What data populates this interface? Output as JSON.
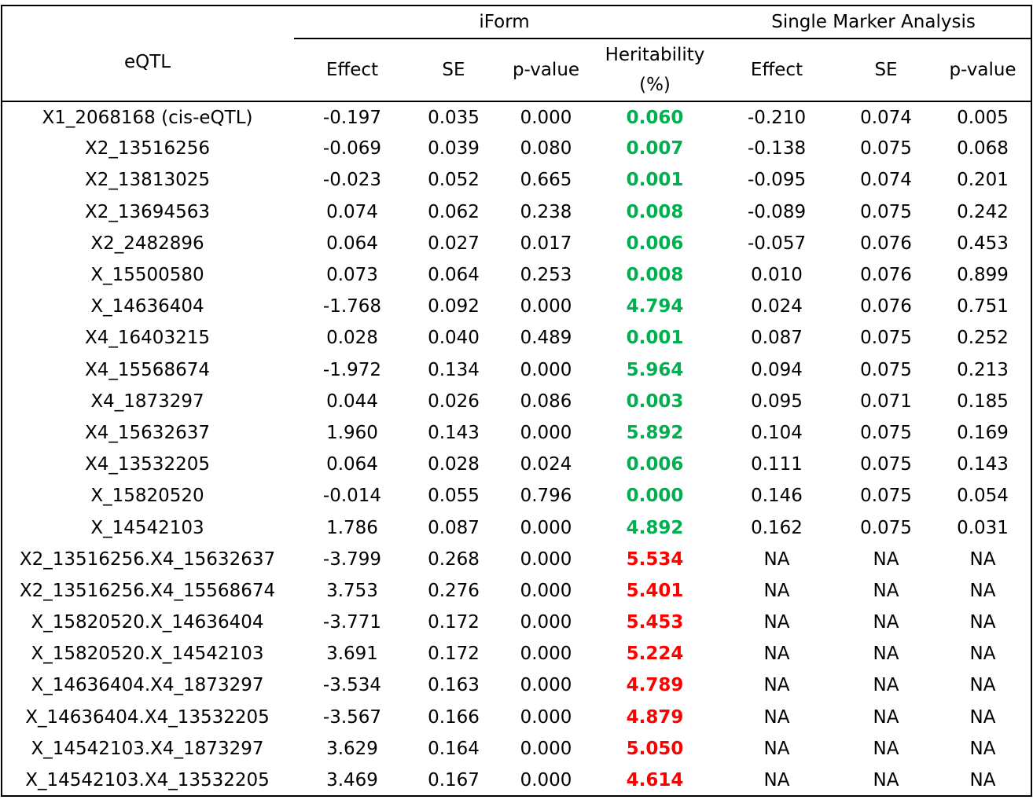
{
  "header": {
    "group_iform": "iForm",
    "group_sma": "Single Marker Analysis",
    "eqtl": "eQTL",
    "effect": "Effect",
    "se": "SE",
    "pvalue": "p-value",
    "heritability_line1": "Heritability",
    "heritability_line2": "(%)",
    "effect2": "Effect",
    "se2": "SE",
    "pvalue2": "p-value"
  },
  "colors": {
    "green": "#00b050",
    "red": "#ff0000"
  },
  "rows": [
    {
      "eqtl": "X1_2068168 (cis-eQTL)",
      "effect": "-0.197",
      "se": "0.035",
      "p": "0.000",
      "h2": "0.060",
      "h2_color": "green",
      "s_effect": "-0.210",
      "s_se": "0.074",
      "s_p": "0.005"
    },
    {
      "eqtl": "X2_13516256",
      "effect": "-0.069",
      "se": "0.039",
      "p": "0.080",
      "h2": "0.007",
      "h2_color": "green",
      "s_effect": "-0.138",
      "s_se": "0.075",
      "s_p": "0.068"
    },
    {
      "eqtl": "X2_13813025",
      "effect": "-0.023",
      "se": "0.052",
      "p": "0.665",
      "h2": "0.001",
      "h2_color": "green",
      "s_effect": "-0.095",
      "s_se": "0.074",
      "s_p": "0.201"
    },
    {
      "eqtl": "X2_13694563",
      "effect": "0.074",
      "se": "0.062",
      "p": "0.238",
      "h2": "0.008",
      "h2_color": "green",
      "s_effect": "-0.089",
      "s_se": "0.075",
      "s_p": "0.242"
    },
    {
      "eqtl": "X2_2482896",
      "effect": "0.064",
      "se": "0.027",
      "p": "0.017",
      "h2": "0.006",
      "h2_color": "green",
      "s_effect": "-0.057",
      "s_se": "0.076",
      "s_p": "0.453"
    },
    {
      "eqtl": "X_15500580",
      "effect": "0.073",
      "se": "0.064",
      "p": "0.253",
      "h2": "0.008",
      "h2_color": "green",
      "s_effect": "0.010",
      "s_se": "0.076",
      "s_p": "0.899"
    },
    {
      "eqtl": "X_14636404",
      "effect": "-1.768",
      "se": "0.092",
      "p": "0.000",
      "h2": "4.794",
      "h2_color": "green",
      "s_effect": "0.024",
      "s_se": "0.076",
      "s_p": "0.751"
    },
    {
      "eqtl": "X4_16403215",
      "effect": "0.028",
      "se": "0.040",
      "p": "0.489",
      "h2": "0.001",
      "h2_color": "green",
      "s_effect": "0.087",
      "s_se": "0.075",
      "s_p": "0.252"
    },
    {
      "eqtl": "X4_15568674",
      "effect": "-1.972",
      "se": "0.134",
      "p": "0.000",
      "h2": "5.964",
      "h2_color": "green",
      "s_effect": "0.094",
      "s_se": "0.075",
      "s_p": "0.213"
    },
    {
      "eqtl": "X4_1873297",
      "effect": "0.044",
      "se": "0.026",
      "p": "0.086",
      "h2": "0.003",
      "h2_color": "green",
      "s_effect": "0.095",
      "s_se": "0.071",
      "s_p": "0.185"
    },
    {
      "eqtl": "X4_15632637",
      "effect": "1.960",
      "se": "0.143",
      "p": "0.000",
      "h2": "5.892",
      "h2_color": "green",
      "s_effect": "0.104",
      "s_se": "0.075",
      "s_p": "0.169"
    },
    {
      "eqtl": "X4_13532205",
      "effect": "0.064",
      "se": "0.028",
      "p": "0.024",
      "h2": "0.006",
      "h2_color": "green",
      "s_effect": "0.111",
      "s_se": "0.075",
      "s_p": "0.143"
    },
    {
      "eqtl": "X_15820520",
      "effect": "-0.014",
      "se": "0.055",
      "p": "0.796",
      "h2": "0.000",
      "h2_color": "green",
      "s_effect": "0.146",
      "s_se": "0.075",
      "s_p": "0.054"
    },
    {
      "eqtl": "X_14542103",
      "effect": "1.786",
      "se": "0.087",
      "p": "0.000",
      "h2": "4.892",
      "h2_color": "green",
      "s_effect": "0.162",
      "s_se": "0.075",
      "s_p": "0.031"
    },
    {
      "eqtl": "X2_13516256.X4_15632637",
      "effect": "-3.799",
      "se": "0.268",
      "p": "0.000",
      "h2": "5.534",
      "h2_color": "red",
      "s_effect": "NA",
      "s_se": "NA",
      "s_p": "NA"
    },
    {
      "eqtl": "X2_13516256.X4_15568674",
      "effect": "3.753",
      "se": "0.276",
      "p": "0.000",
      "h2": "5.401",
      "h2_color": "red",
      "s_effect": "NA",
      "s_se": "NA",
      "s_p": "NA"
    },
    {
      "eqtl": "X_15820520.X_14636404",
      "effect": "-3.771",
      "se": "0.172",
      "p": "0.000",
      "h2": "5.453",
      "h2_color": "red",
      "s_effect": "NA",
      "s_se": "NA",
      "s_p": "NA"
    },
    {
      "eqtl": "X_15820520.X_14542103",
      "effect": "3.691",
      "se": "0.172",
      "p": "0.000",
      "h2": "5.224",
      "h2_color": "red",
      "s_effect": "NA",
      "s_se": "NA",
      "s_p": "NA"
    },
    {
      "eqtl": "X_14636404.X4_1873297",
      "effect": "-3.534",
      "se": "0.163",
      "p": "0.000",
      "h2": "4.789",
      "h2_color": "red",
      "s_effect": "NA",
      "s_se": "NA",
      "s_p": "NA"
    },
    {
      "eqtl": "X_14636404.X4_13532205",
      "effect": "-3.567",
      "se": "0.166",
      "p": "0.000",
      "h2": "4.879",
      "h2_color": "red",
      "s_effect": "NA",
      "s_se": "NA",
      "s_p": "NA"
    },
    {
      "eqtl": "X_14542103.X4_1873297",
      "effect": "3.629",
      "se": "0.164",
      "p": "0.000",
      "h2": "5.050",
      "h2_color": "red",
      "s_effect": "NA",
      "s_se": "NA",
      "s_p": "NA"
    },
    {
      "eqtl": "X_14542103.X4_13532205",
      "effect": "3.469",
      "se": "0.167",
      "p": "0.000",
      "h2": "4.614",
      "h2_color": "red",
      "s_effect": "NA",
      "s_se": "NA",
      "s_p": "NA"
    }
  ]
}
